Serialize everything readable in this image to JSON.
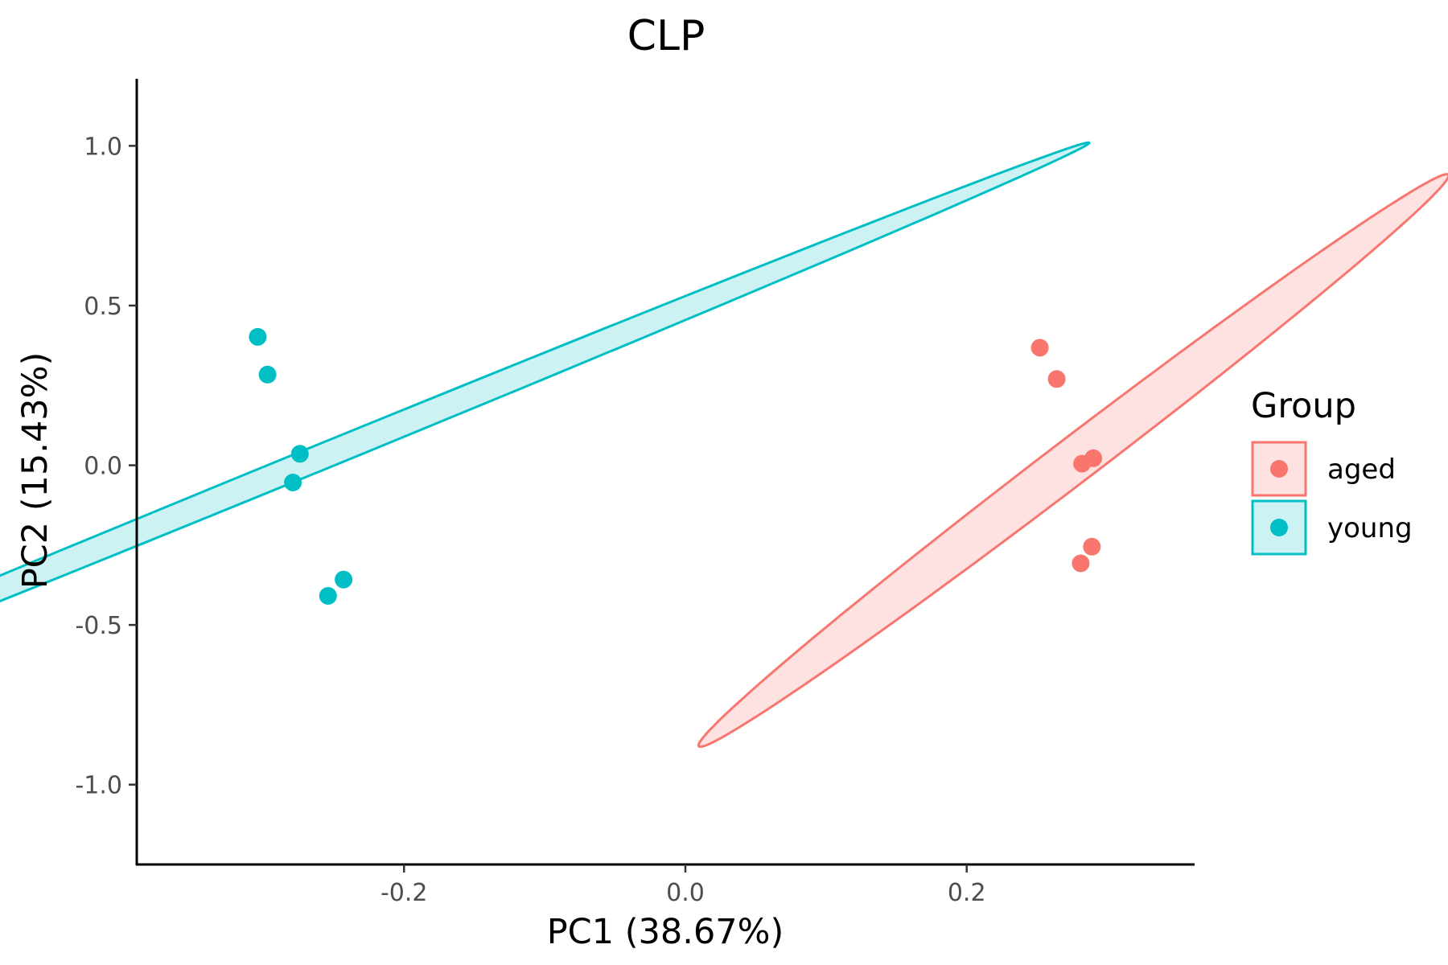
{
  "chart_data": {
    "type": "scatter",
    "title": "CLP",
    "xlabel": "PC1 (38.67%)",
    "ylabel": "PC2 (15.43%)",
    "xlim": [
      -0.39,
      0.362
    ],
    "ylim": [
      -1.25,
      1.21
    ],
    "x_ticks": [
      -0.2,
      0.0,
      0.2
    ],
    "x_tick_labels": [
      "-0.2",
      "0.0",
      "0.2"
    ],
    "y_ticks": [
      1.0,
      0.5,
      0.0,
      -0.5,
      -1.0
    ],
    "y_tick_labels": [
      "1.0",
      "0.5",
      "0.0",
      "-0.5",
      "-1.0"
    ],
    "grid": false,
    "legend": {
      "title": "Group",
      "position": "right"
    },
    "series": [
      {
        "name": "aged",
        "color": "#F8766D",
        "fill": "#FDE2E1",
        "points": [
          {
            "x": 0.252,
            "y": 0.368
          },
          {
            "x": 0.264,
            "y": 0.27
          },
          {
            "x": 0.282,
            "y": 0.005
          },
          {
            "x": 0.29,
            "y": 0.022
          },
          {
            "x": 0.289,
            "y": -0.255
          },
          {
            "x": 0.281,
            "y": -0.307
          }
        ],
        "ellipse": {
          "center": [
            0.276,
            0.015
          ],
          "rx": 0.0253,
          "ry": 0.935,
          "angle": -16.5
        }
      },
      {
        "name": "young",
        "color": "#00BFC4",
        "fill": "#CCF2F3",
        "points": [
          {
            "x": -0.304,
            "y": 0.402
          },
          {
            "x": -0.297,
            "y": 0.284
          },
          {
            "x": -0.274,
            "y": 0.036
          },
          {
            "x": -0.279,
            "y": -0.054
          },
          {
            "x": -0.254,
            "y": -0.409
          },
          {
            "x": -0.243,
            "y": -0.358
          }
        ],
        "ellipse": {
          "center": [
            -0.276,
            -0.005
          ],
          "rx": 0.0209,
          "ry": 1.161,
          "angle": -29.0
        }
      }
    ]
  }
}
